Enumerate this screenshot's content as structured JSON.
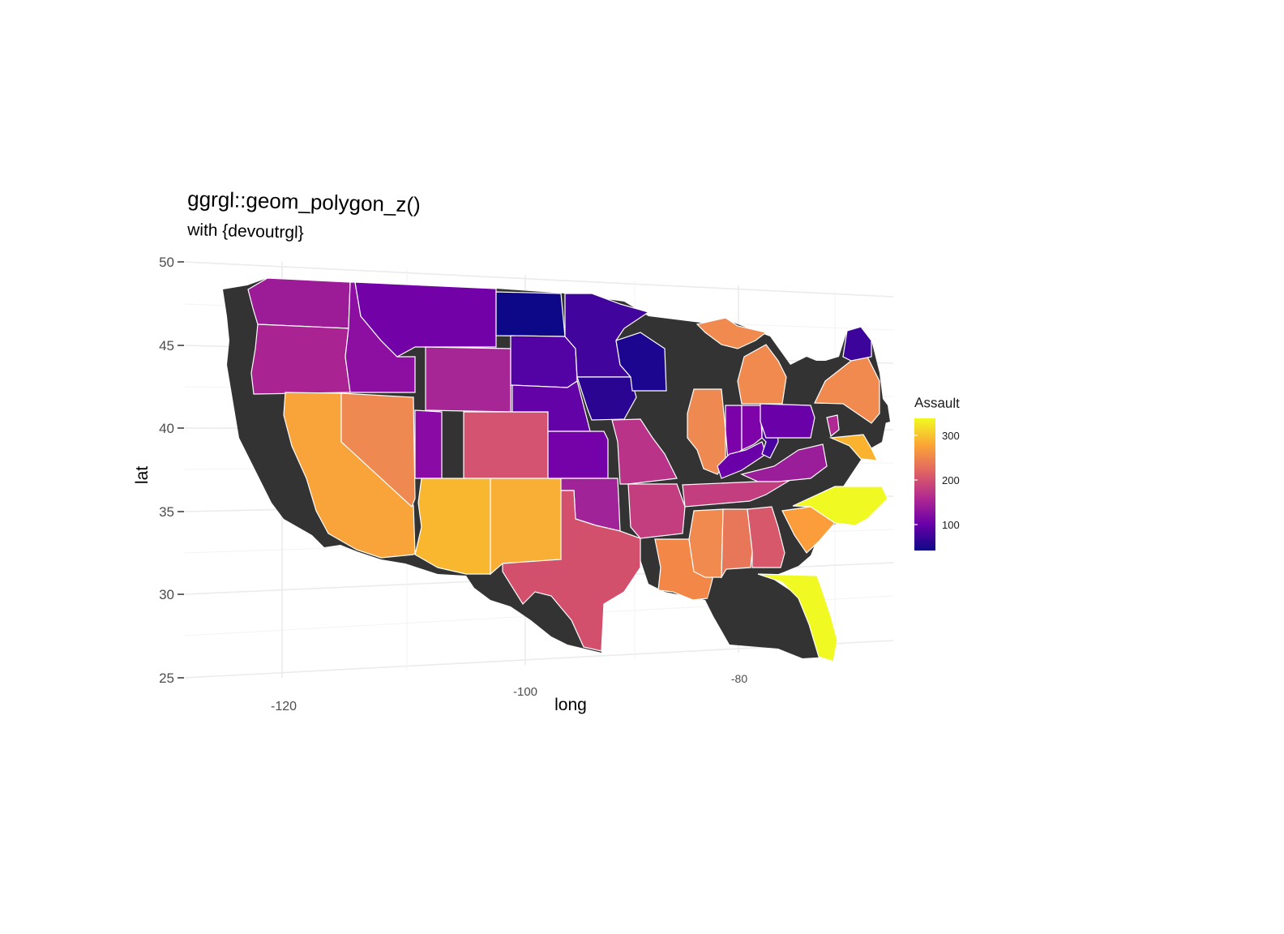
{
  "title": "ggrgl::geom_polygon_z()",
  "subtitle": "with {devoutrgl}",
  "x_axis": {
    "label": "long",
    "ticks": [
      "-120",
      "-100",
      "-80"
    ]
  },
  "y_axis": {
    "label": "lat",
    "ticks": [
      "50",
      "45",
      "40",
      "35",
      "30",
      "25"
    ]
  },
  "legend": {
    "title": "Assault",
    "ticks": [
      "300",
      "200",
      "100"
    ],
    "colors": [
      "#f0f921",
      "#fca636",
      "#e16462",
      "#b12a90",
      "#6a00a8",
      "#0d0887"
    ]
  },
  "map_data": {
    "fill_variable": "Assault",
    "shadow_color": "#333333",
    "states": [
      {
        "name": "washington",
        "color": "#9c1c97"
      },
      {
        "name": "oregon",
        "color": "#a92393"
      },
      {
        "name": "california",
        "color": "#f9a43a"
      },
      {
        "name": "nevada",
        "color": "#ee8a51"
      },
      {
        "name": "idaho",
        "color": "#8c0fa2"
      },
      {
        "name": "montana",
        "color": "#7201a8"
      },
      {
        "name": "wyoming",
        "color": "#a52694"
      },
      {
        "name": "utah",
        "color": "#8a0aa5"
      },
      {
        "name": "arizona",
        "color": "#f8b72e"
      },
      {
        "name": "colorado",
        "color": "#d45370"
      },
      {
        "name": "new mexico",
        "color": "#f9ae35"
      },
      {
        "name": "north dakota",
        "color": "#0d0887"
      },
      {
        "name": "south dakota",
        "color": "#5302a3"
      },
      {
        "name": "nebraska",
        "color": "#6303a7"
      },
      {
        "name": "kansas",
        "color": "#7501a8"
      },
      {
        "name": "oklahoma",
        "color": "#a02497"
      },
      {
        "name": "texas",
        "color": "#d2506b"
      },
      {
        "name": "minnesota",
        "color": "#41049d"
      },
      {
        "name": "iowa",
        "color": "#2a0592"
      },
      {
        "name": "missouri",
        "color": "#b93389"
      },
      {
        "name": "arkansas",
        "color": "#c33e7f"
      },
      {
        "name": "louisiana",
        "color": "#f38748"
      },
      {
        "name": "wisconsin",
        "color": "#1d068f"
      },
      {
        "name": "illinois",
        "color": "#ee8a51"
      },
      {
        "name": "michigan",
        "color": "#f18a4f"
      },
      {
        "name": "indiana",
        "color": "#7a02a8"
      },
      {
        "name": "ohio",
        "color": "#7e03a8"
      },
      {
        "name": "kentucky",
        "color": "#6a00a8"
      },
      {
        "name": "tennessee",
        "color": "#c33e7f"
      },
      {
        "name": "mississippi",
        "color": "#f08a4e"
      },
      {
        "name": "alabama",
        "color": "#e8775a"
      },
      {
        "name": "georgia",
        "color": "#d8586b"
      },
      {
        "name": "florida",
        "color": "#f0f921"
      },
      {
        "name": "south carolina",
        "color": "#fa9d3a"
      },
      {
        "name": "north carolina",
        "color": "#f0f921"
      },
      {
        "name": "virginia",
        "color": "#9a1e99"
      },
      {
        "name": "west virginia",
        "color": "#4903a0"
      },
      {
        "name": "pennsylvania",
        "color": "#6a00a8"
      },
      {
        "name": "new york",
        "color": "#f18a4f"
      },
      {
        "name": "maryland",
        "color": "#fbb32f"
      },
      {
        "name": "new jersey",
        "color": "#b02891"
      },
      {
        "name": "maine",
        "color": "#3d049b"
      }
    ]
  }
}
